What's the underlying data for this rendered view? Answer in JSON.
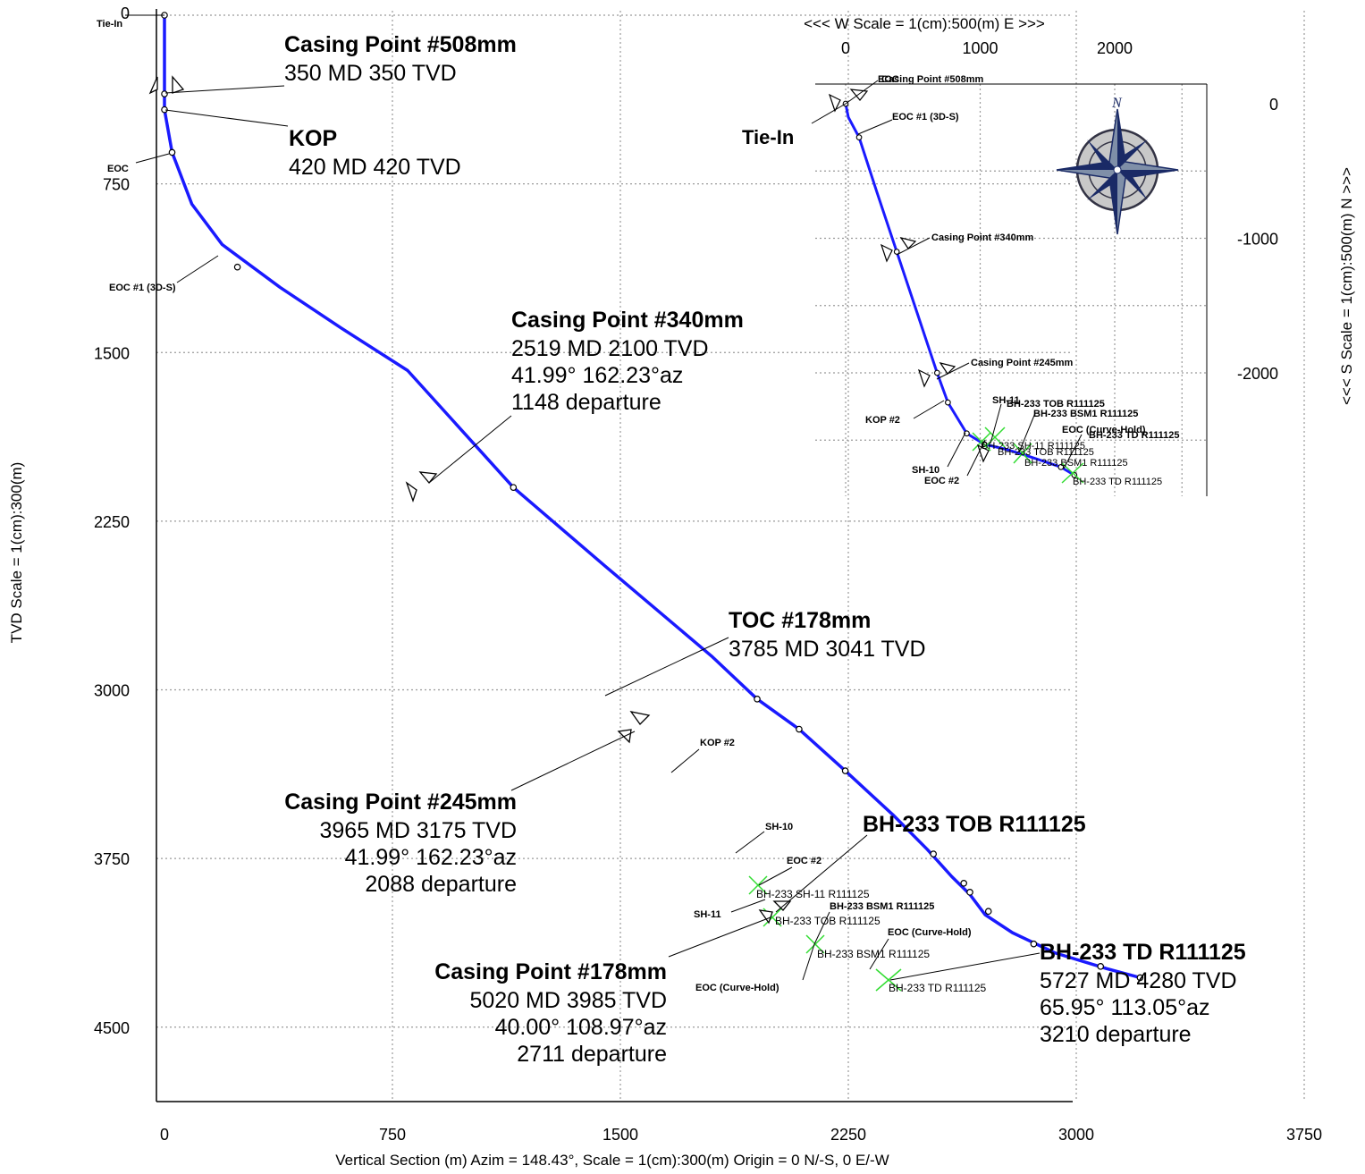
{
  "colors": {
    "path": "#1a1aff",
    "grid": "#9a9a9a",
    "target": "#33dd33",
    "compass_fill": "#7f8fa8",
    "compass_ring": "#c8c8c8"
  },
  "chart_data": [
    {
      "type": "line",
      "name": "vertical-section",
      "xlabel": "Vertical Section (m) Azim = 148.43°, Scale = 1(cm):300(m)  Origin = 0 N/-S, 0 E/-W",
      "ylabel": "TVD Scale = 1(cm):300(m)",
      "xlim": [
        -30,
        4000
      ],
      "ylim": [
        -30,
        4800
      ],
      "xticks": [
        "0",
        "750",
        "1500",
        "2250",
        "3000",
        "3750"
      ],
      "xtick_values": [
        0,
        750,
        1500,
        2250,
        3000,
        3750
      ],
      "yticks": [
        "0",
        "750",
        "1500",
        "2250",
        "3000",
        "3750",
        "4500"
      ],
      "ytick_values": [
        0,
        750,
        1500,
        2250,
        3000,
        3750,
        4500
      ],
      "grid": true,
      "series": [
        {
          "x": [
            0,
            0,
            0,
            25,
            90,
            190,
            380,
            580,
            800,
            1148,
            1450,
            1800,
            1950,
            2088,
            2240,
            2400,
            2510,
            2590,
            2650,
            2700,
            2790,
            2930,
            3100,
            3210
          ],
          "y": [
            0,
            350,
            420,
            610,
            840,
            1020,
            1210,
            1390,
            1580,
            2100,
            2450,
            2850,
            3041,
            3175,
            3360,
            3560,
            3710,
            3830,
            3910,
            4000,
            4080,
            4170,
            4240,
            4280
          ]
        }
      ],
      "points": [
        {
          "label": "Tie-In",
          "x": 0,
          "y": 0
        },
        {
          "label": "Casing Point #508mm",
          "x": 0,
          "y": 350
        },
        {
          "label": "KOP",
          "x": 0,
          "y": 420
        },
        {
          "label": "EOC",
          "x": 25,
          "y": 610
        },
        {
          "label": "EOC #1 (3D-S)",
          "x": 240,
          "y": 1120
        },
        {
          "label": "Casing Point #340mm",
          "x": 1148,
          "y": 2100
        },
        {
          "label": "TOC #178mm",
          "x": 1950,
          "y": 3041
        },
        {
          "label": "Casing Point #245mm",
          "x": 2088,
          "y": 3175
        },
        {
          "label": "KOP #2",
          "x": 2240,
          "y": 3360
        },
        {
          "label": "SH-10",
          "x": 2530,
          "y": 3730
        },
        {
          "label": "EOC #2",
          "x": 2630,
          "y": 3860
        },
        {
          "label": "SH-11",
          "x": 2650,
          "y": 3900
        },
        {
          "label": "BH-233 TOB R111125",
          "x": 2711,
          "y": 3985
        },
        {
          "label": "BH-233 BSM1 R111125",
          "x": 2860,
          "y": 4130
        },
        {
          "label": "EOC (Curve-Hold)",
          "x": 3080,
          "y": 4230
        },
        {
          "label": "BH-233 TD R111125",
          "x": 3210,
          "y": 4280
        }
      ]
    },
    {
      "type": "line",
      "name": "plan-view",
      "xlabel": "<<<  W   Scale = 1(cm):500(m)   E  >>>",
      "ylabel": "<<<  S   Scale = 1(cm):500(m)   N  >>>",
      "xlim": [
        -230,
        2700
      ],
      "ylim": [
        -2900,
        150
      ],
      "xticks": [
        "0",
        "1000",
        "2000"
      ],
      "xtick_values": [
        0,
        1000,
        2000
      ],
      "yticks": [
        "0",
        "-1000",
        "-2000"
      ],
      "ytick_values": [
        0,
        -1000,
        -2000
      ],
      "grid": true,
      "series": [
        {
          "x": [
            0,
            20,
            100,
            230,
            380,
            530,
            680,
            760,
            900,
            1030,
            1200,
            1360,
            1600,
            1700
          ],
          "y": [
            0,
            -100,
            -250,
            -650,
            -1100,
            -1550,
            -2000,
            -2220,
            -2450,
            -2530,
            -2570,
            -2620,
            -2700,
            -2760
          ]
        }
      ],
      "points": [
        {
          "label": "Tie-In",
          "x": 0,
          "y": 0
        },
        {
          "label": "EOC #1 (3D-S)",
          "x": 100,
          "y": -250
        },
        {
          "label": "Casing Point #340mm",
          "x": 380,
          "y": -1100
        },
        {
          "label": "Casing Point #245mm",
          "x": 680,
          "y": -2000
        },
        {
          "label": "KOP #2",
          "x": 760,
          "y": -2220
        },
        {
          "label": "SH-10",
          "x": 900,
          "y": -2450
        },
        {
          "label": "EOC #2",
          "x": 1030,
          "y": -2530
        },
        {
          "label": "BH-233 BSM1 R111125",
          "x": 1600,
          "y": -2700
        },
        {
          "label": "BH-233 TD R111125",
          "x": 1700,
          "y": -2760
        }
      ]
    }
  ],
  "section_callouts": [
    {
      "title": "Casing Point #508mm",
      "lines": [
        "350 MD  350 TVD"
      ]
    },
    {
      "title": "KOP",
      "lines": [
        "420 MD  420 TVD"
      ]
    },
    {
      "title": "Casing Point #340mm",
      "lines": [
        "2519 MD  2100 TVD",
        "41.99°  162.23°az",
        "1148 departure"
      ]
    },
    {
      "title": "TOC #178mm",
      "lines": [
        "3785 MD  3041 TVD"
      ]
    },
    {
      "title": "Casing Point #245mm",
      "lines": [
        "3965 MD  3175 TVD",
        "41.99°  162.23°az",
        "2088 departure"
      ]
    },
    {
      "title": "BH-233 TOB R111125",
      "lines": []
    },
    {
      "title": "Casing Point #178mm",
      "lines": [
        "5020 MD  3985 TVD",
        "40.00°  108.97°az",
        "2711 departure"
      ]
    },
    {
      "title": "BH-233 TD R111125",
      "lines": [
        "5727 MD  4280 TVD",
        "65.95°  113.05°az",
        "3210 departure"
      ]
    }
  ],
  "section_small_labels": {
    "tie_in": "Tie-In",
    "eoc": "EOC",
    "eoc1": "EOC #1 (3D-S)",
    "kop2": "KOP #2",
    "sh10": "SH-10",
    "eoc2": "EOC #2",
    "sh11": "SH-11",
    "bsm1": "BH-233 BSM1 R111125",
    "eoc_curve_hold_1": "EOC (Curve-Hold)",
    "eoc_curve_hold_2": "EOC (Curve-Hold)",
    "target_sh11": "BH-233 SH-11 R111125",
    "target_tob": "BH-233 TOB R111125",
    "target_bsm1": "BH-233 BSM1 R111125",
    "target_td": "BH-233 TD R111125"
  },
  "plan_labels": {
    "tie_in": "Tie-In",
    "eoc_top": "EOC",
    "cp508": "Casing Point #508mm",
    "eoc1": "EOC #1 (3D-S)",
    "cp340": "Casing Point #340mm",
    "cp245": "Casing Point #245mm",
    "kop2": "KOP #2",
    "sh11": "SH-11",
    "sh10": "SH-10",
    "eoc2": "EOC #2",
    "tob": "BH-233 TOB R111125",
    "bsm1": "BH-233 BSM1 R111125",
    "eoc_curve_hold": "EOC (Curve-Hold)",
    "td": "BH-233 TD R111125",
    "target_sh11": "BH-233 SH-11 R111125",
    "target_tob": "BH-233 TOB R111125",
    "target_bsm1": "BH-233 BSM1 R111125",
    "target_td": "BH-233 TD R111125"
  },
  "compass_letter": "N"
}
